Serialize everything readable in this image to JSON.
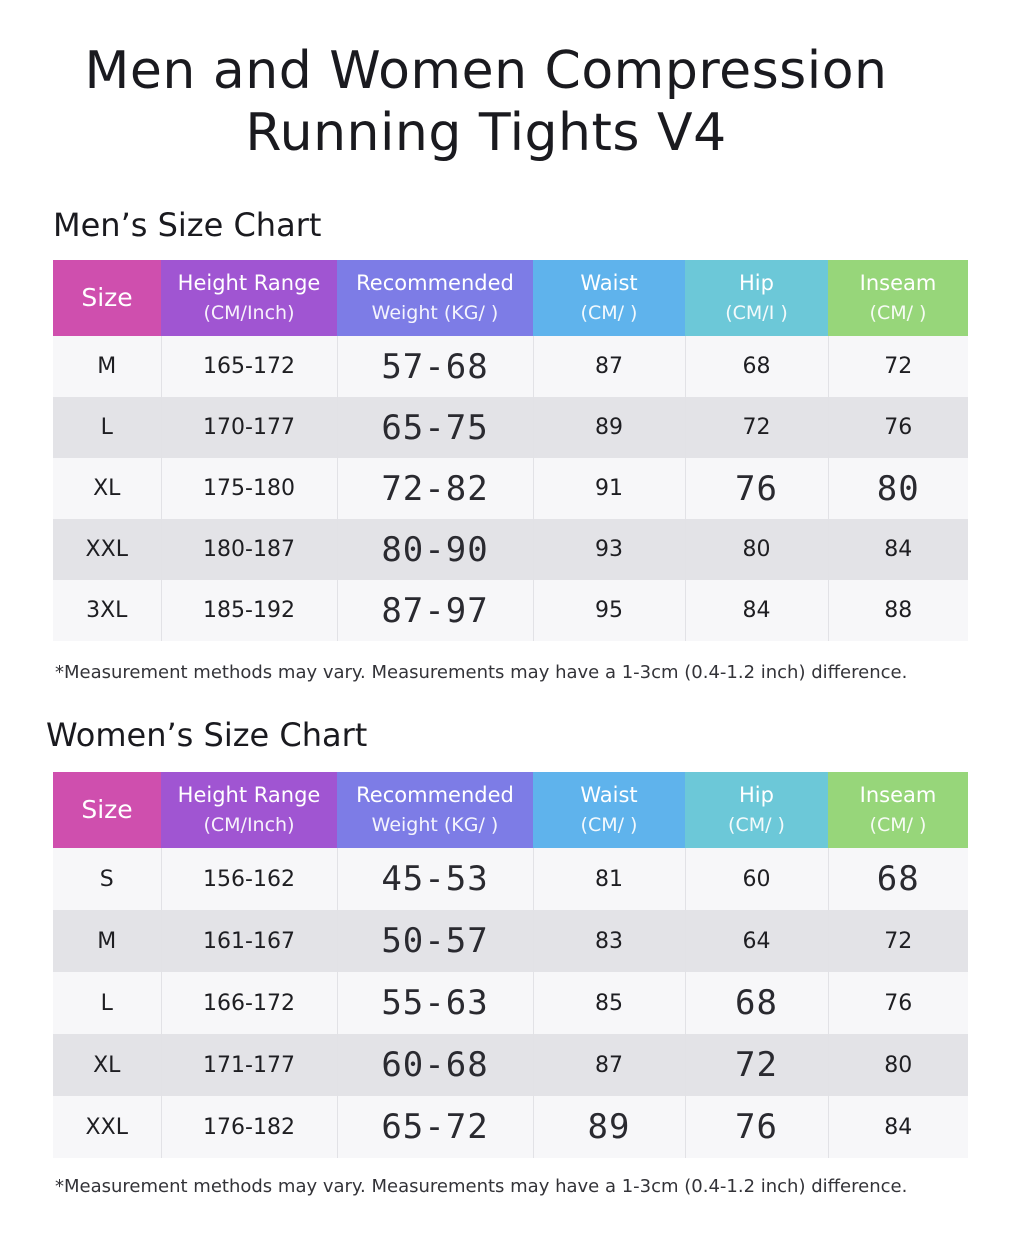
{
  "title_line1": "Men and Women Compression",
  "title_line2": "Running Tights V4",
  "headers": {
    "size": "Size",
    "height": "Height Range",
    "height_unit": "(CM/Inch)",
    "weight": "Recommended",
    "weight_unit": "Weight (KG/ )",
    "waist": "Waist",
    "waist_unit": "(CM/ )",
    "hip": "Hip",
    "hip_unit": "(CM/I )",
    "hip_unit_women": "(CM/ )",
    "inseam": "Inseam",
    "inseam_unit": "(CM/ )"
  },
  "men": {
    "title": "Men’s Size Chart",
    "rows": [
      {
        "size": "M",
        "height": "165-172",
        "weight": "57-68",
        "waist": "87",
        "hip": "68",
        "inseam": "72"
      },
      {
        "size": "L",
        "height": "170-177",
        "weight": "65-75",
        "waist": "89",
        "hip": "72",
        "inseam": "76"
      },
      {
        "size": "XL",
        "height": "175-180",
        "weight": "72-82",
        "waist": "91",
        "hip": "76",
        "inseam": "80"
      },
      {
        "size": "XXL",
        "height": "180-187",
        "weight": "80-90",
        "waist": "93",
        "hip": "80",
        "inseam": "84"
      },
      {
        "size": "3XL",
        "height": "185-192",
        "weight": "87-97",
        "waist": "95",
        "hip": "84",
        "inseam": "88"
      }
    ],
    "note": "*Measurement methods may vary. Measurements may have a 1-3cm (0.4-1.2 inch) difference."
  },
  "women": {
    "title": "Women’s Size Chart",
    "rows": [
      {
        "size": "S",
        "height": "156-162",
        "weight": "45-53",
        "waist": "81",
        "hip": "60",
        "inseam": "68"
      },
      {
        "size": "M",
        "height": "161-167",
        "weight": "50-57",
        "waist": "83",
        "hip": "64",
        "inseam": "72"
      },
      {
        "size": "L",
        "height": "166-172",
        "weight": "55-63",
        "waist": "85",
        "hip": "68",
        "inseam": "76"
      },
      {
        "size": "XL",
        "height": "171-177",
        "weight": "60-68",
        "waist": "87",
        "hip": "72",
        "inseam": "80"
      },
      {
        "size": "XXL",
        "height": "176-182",
        "weight": "65-72",
        "waist": "89",
        "hip": "76",
        "inseam": "84"
      }
    ],
    "note": "*Measurement methods may vary. Measurements may have a 1-3cm (0.4-1.2 inch) difference."
  }
}
